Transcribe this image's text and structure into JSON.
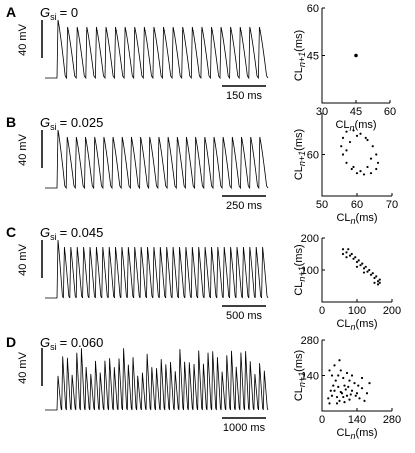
{
  "chart_data": [
    {
      "type": "scatter",
      "label": "A",
      "param": "G",
      "param_sub": "si",
      "param_value": "= 0",
      "voltage_scale": "40 mV",
      "time_scale": "150 ms",
      "x_label": "CL",
      "x_sub": "n",
      "x_unit": "(ms)",
      "y_label": "CL",
      "y_sub": "n+1",
      "y_unit": "(ms)",
      "xlim": [
        30,
        60
      ],
      "ylim": [
        30,
        60
      ],
      "xticks": [
        30,
        45,
        60
      ],
      "yticks": [
        45,
        60
      ],
      "x": [
        45
      ],
      "y": [
        45
      ]
    },
    {
      "type": "scatter",
      "label": "B",
      "param": "G",
      "param_sub": "si",
      "param_value": "= 0.025",
      "voltage_scale": "40 mV",
      "time_scale": "250 ms",
      "x_label": "CL",
      "x_sub": "n",
      "x_unit": "(ms)",
      "y_label": "CL",
      "y_sub": "n+1",
      "y_unit": "(ms)",
      "xlim": [
        50,
        70
      ],
      "ylim": [
        50,
        70
      ],
      "xticks": [
        50,
        60,
        70
      ],
      "yticks": [
        60
      ],
      "x": [
        56,
        57,
        59,
        61,
        63,
        64.5,
        65.5,
        66,
        65.5,
        64,
        62,
        60,
        58.5,
        57,
        56,
        55.5,
        58,
        60,
        62.5,
        64,
        63,
        59,
        57,
        61
      ],
      "y": [
        64,
        65.5,
        65.8,
        65,
        63.5,
        62,
        60,
        58,
        56.5,
        55.5,
        55.2,
        55.5,
        56.5,
        58,
        60,
        62,
        63,
        64.5,
        64,
        59,
        57,
        57,
        61,
        56
      ]
    },
    {
      "type": "scatter",
      "label": "C",
      "param": "G",
      "param_sub": "si",
      "param_value": "= 0.045",
      "voltage_scale": "40 mV",
      "time_scale": "500 ms",
      "x_label": "CL",
      "x_sub": "n",
      "x_unit": "(ms)",
      "y_label": "CL",
      "y_sub": "n+1",
      "y_unit": "(ms)",
      "xlim": [
        0,
        200
      ],
      "ylim": [
        0,
        200
      ],
      "xticks": [
        0,
        100,
        200
      ],
      "yticks": [
        100,
        200
      ],
      "x": [
        60,
        70,
        80,
        90,
        100,
        110,
        120,
        130,
        140,
        150,
        160,
        165,
        75,
        85,
        95,
        105,
        115,
        125,
        135,
        145,
        155,
        165,
        60,
        70,
        160,
        150,
        100,
        120
      ],
      "y": [
        165,
        155,
        145,
        135,
        125,
        115,
        105,
        95,
        85,
        75,
        65,
        60,
        165,
        150,
        140,
        130,
        120,
        110,
        100,
        90,
        80,
        70,
        150,
        140,
        55,
        60,
        110,
        92
      ]
    },
    {
      "type": "scatter",
      "label": "D",
      "param": "G",
      "param_sub": "si",
      "param_value": "= 0.060",
      "voltage_scale": "40 mV",
      "time_scale": "1000 ms",
      "x_label": "CL",
      "x_sub": "n",
      "x_unit": "(ms)",
      "y_label": "CL",
      "y_sub": "n+1",
      "y_unit": "(ms)",
      "xlim": [
        0,
        280
      ],
      "ylim": [
        0,
        280
      ],
      "xticks": [
        0,
        140,
        280
      ],
      "yticks": [
        140,
        280
      ],
      "x": [
        40,
        50,
        60,
        70,
        80,
        90,
        100,
        110,
        120,
        130,
        140,
        150,
        160,
        170,
        55,
        65,
        75,
        85,
        45,
        35,
        25,
        30,
        60,
        90,
        100,
        110,
        120,
        135,
        145,
        180,
        50,
        70,
        95,
        65,
        75,
        85,
        105,
        115,
        40,
        160,
        190,
        30
      ],
      "y": [
        60,
        80,
        55,
        40,
        70,
        100,
        60,
        45,
        80,
        110,
        70,
        50,
        90,
        40,
        120,
        140,
        160,
        130,
        100,
        80,
        50,
        30,
        30,
        35,
        150,
        120,
        140,
        60,
        100,
        70,
        180,
        200,
        85,
        95,
        75,
        55,
        95,
        65,
        140,
        130,
        110,
        160
      ]
    }
  ]
}
